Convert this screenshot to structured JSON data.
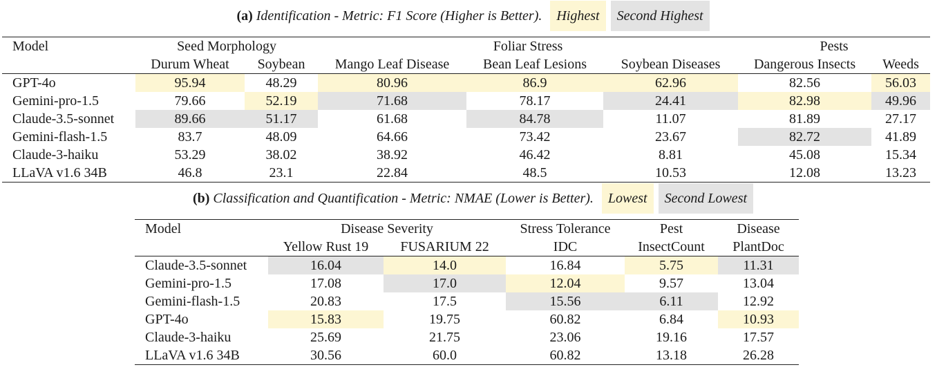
{
  "table_a": {
    "caption": {
      "tag": "(a)",
      "text": "Identification - Metric: F1 Score (Higher is Better).",
      "legend_first": "Highest",
      "legend_second": "Second Highest"
    },
    "header_model": "Model",
    "groups": [
      "Seed Morphology",
      "Foliar Stress",
      "Pests"
    ],
    "columns": [
      "Durum Wheat",
      "Soybean",
      "Mango Leaf Disease",
      "Bean Leaf Lesions",
      "Soybean Diseases",
      "Dangerous Insects",
      "Weeds"
    ],
    "rows": [
      {
        "model": "GPT-4o",
        "values": [
          "95.94",
          "48.29",
          "80.96",
          "86.9",
          "62.96",
          "82.56",
          "56.03"
        ]
      },
      {
        "model": "Gemini-pro-1.5",
        "values": [
          "79.66",
          "52.19",
          "71.68",
          "78.17",
          "24.41",
          "82.98",
          "49.96"
        ]
      },
      {
        "model": "Claude-3.5-sonnet",
        "values": [
          "89.66",
          "51.17",
          "61.68",
          "84.78",
          "11.07",
          "81.89",
          "27.17"
        ]
      },
      {
        "model": "Gemini-flash-1.5",
        "values": [
          "83.7",
          "48.09",
          "64.66",
          "73.42",
          "23.67",
          "82.72",
          "41.89"
        ]
      },
      {
        "model": "Claude-3-haiku",
        "values": [
          "53.29",
          "38.02",
          "38.92",
          "46.42",
          "8.81",
          "45.08",
          "15.34"
        ]
      },
      {
        "model": "LLaVA v1.6 34B",
        "values": [
          "46.8",
          "23.1",
          "22.84",
          "48.5",
          "10.53",
          "12.08",
          "13.23"
        ]
      }
    ]
  },
  "table_b": {
    "caption": {
      "tag": "(b)",
      "text": "Classification and Quantification - Metric: NMAE (Lower is Better).",
      "legend_first": "Lowest",
      "legend_second": "Second Lowest"
    },
    "header_model": "Model",
    "groups": [
      "Disease Severity",
      "Stress Tolerance",
      "Pest",
      "Disease"
    ],
    "columns": [
      "Yellow Rust 19",
      "FUSARIUM 22",
      "IDC",
      "InsectCount",
      "PlantDoc"
    ],
    "rows": [
      {
        "model": "Claude-3.5-sonnet",
        "values": [
          "16.04",
          "14.0",
          "16.84",
          "5.75",
          "11.31"
        ]
      },
      {
        "model": "Gemini-pro-1.5",
        "values": [
          "17.08",
          "17.0",
          "12.04",
          "9.57",
          "13.04"
        ]
      },
      {
        "model": "Gemini-flash-1.5",
        "values": [
          "20.83",
          "17.5",
          "15.56",
          "6.11",
          "12.92"
        ]
      },
      {
        "model": "GPT-4o",
        "values": [
          "15.83",
          "19.75",
          "60.82",
          "6.84",
          "10.93"
        ]
      },
      {
        "model": "Claude-3-haiku",
        "values": [
          "25.69",
          "21.75",
          "23.06",
          "19.16",
          "17.57"
        ]
      },
      {
        "model": "LLaVA v1.6 34B",
        "values": [
          "30.56",
          "60.0",
          "60.82",
          "13.18",
          "26.28"
        ]
      }
    ]
  },
  "colors": {
    "highlight_best": "#fdf6d3",
    "highlight_second": "#e3e3e3"
  }
}
